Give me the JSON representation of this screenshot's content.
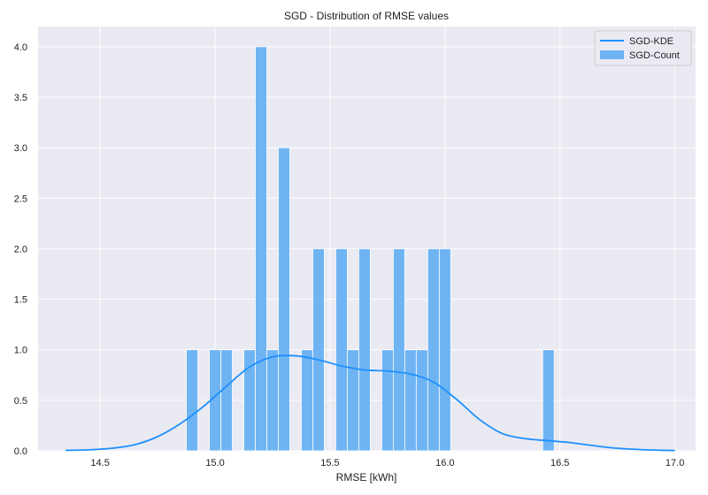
{
  "chart_data": {
    "type": "bar",
    "title": "SGD - Distribution of RMSE values",
    "xlabel": "RMSE [kWh]",
    "ylabel": "",
    "xlim": [
      14.23,
      17.09
    ],
    "ylim": [
      0.0,
      4.2
    ],
    "x_ticks": [
      "14.5",
      "15.0",
      "15.5",
      "16.0",
      "16.5",
      "17.0"
    ],
    "y_ticks": [
      "0.0",
      "0.5",
      "1.0",
      "1.5",
      "2.0",
      "2.5",
      "3.0",
      "3.5",
      "4.0"
    ],
    "grid": true,
    "legend_position": "top-right",
    "colors": {
      "bar": "#6fb4f2",
      "kde": "#1e90ff",
      "plot_bg": "#eaeaf2",
      "grid": "#ffffff"
    },
    "histogram": {
      "name": "SGD-Count",
      "bin_width": 0.05,
      "bins": [
        {
          "x": 14.875,
          "count": 1
        },
        {
          "x": 14.975,
          "count": 1
        },
        {
          "x": 15.025,
          "count": 1
        },
        {
          "x": 15.125,
          "count": 1
        },
        {
          "x": 15.175,
          "count": 4
        },
        {
          "x": 15.225,
          "count": 1
        },
        {
          "x": 15.275,
          "count": 3
        },
        {
          "x": 15.375,
          "count": 1
        },
        {
          "x": 15.425,
          "count": 2
        },
        {
          "x": 15.525,
          "count": 2
        },
        {
          "x": 15.575,
          "count": 1
        },
        {
          "x": 15.625,
          "count": 2
        },
        {
          "x": 15.725,
          "count": 1
        },
        {
          "x": 15.775,
          "count": 2
        },
        {
          "x": 15.825,
          "count": 1
        },
        {
          "x": 15.875,
          "count": 1
        },
        {
          "x": 15.925,
          "count": 2
        },
        {
          "x": 15.975,
          "count": 2
        },
        {
          "x": 16.425,
          "count": 1
        }
      ]
    },
    "kde": {
      "name": "SGD-KDE",
      "x": [
        14.35,
        14.45,
        14.55,
        14.65,
        14.75,
        14.85,
        14.95,
        15.05,
        15.15,
        15.25,
        15.35,
        15.45,
        15.55,
        15.65,
        15.75,
        15.85,
        15.95,
        16.05,
        16.15,
        16.25,
        16.35,
        16.45,
        16.55,
        16.65,
        16.75,
        16.85,
        16.95,
        17.0
      ],
      "y": [
        0.005,
        0.01,
        0.025,
        0.06,
        0.14,
        0.27,
        0.44,
        0.64,
        0.83,
        0.93,
        0.94,
        0.9,
        0.84,
        0.8,
        0.79,
        0.76,
        0.68,
        0.51,
        0.31,
        0.17,
        0.12,
        0.1,
        0.08,
        0.05,
        0.025,
        0.012,
        0.005,
        0.003
      ]
    }
  }
}
